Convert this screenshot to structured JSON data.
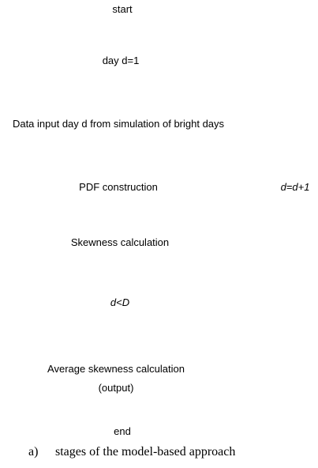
{
  "nodes": [
    {
      "label": "start"
    },
    {
      "label": "day d=1"
    },
    {
      "label": "Data input day d from simulation of bright days"
    },
    {
      "label": "PDF construction"
    },
    {
      "label": "Skewness calculation"
    },
    {
      "label": "d<D"
    },
    {
      "label": "Average skewness calculation (output)"
    },
    {
      "label": "end"
    },
    {
      "label": "d=d+1"
    }
  ],
  "caption": {
    "marker": "a)",
    "text": "stages of the model-based approach"
  }
}
